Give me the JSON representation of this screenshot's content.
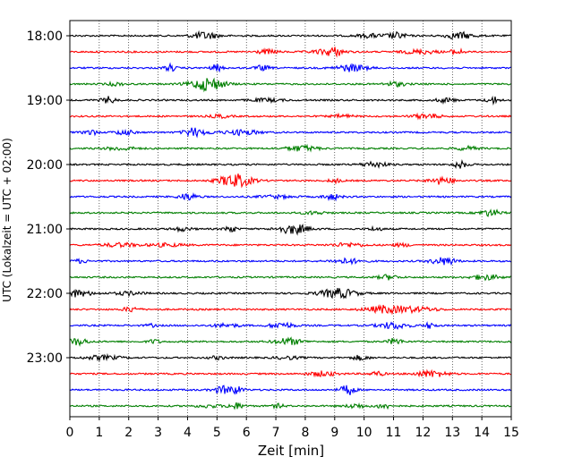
{
  "chart_data": {
    "type": "line",
    "title": "",
    "xlabel": "Zeit  [min]",
    "ylabel": "UTC (Lokalzeit = UTC + 02:00)",
    "xlim": [
      0,
      15
    ],
    "x_ticks": [
      "0",
      "1",
      "2",
      "3",
      "4",
      "5",
      "6",
      "7",
      "8",
      "9",
      "10",
      "11",
      "12",
      "13",
      "14",
      "15"
    ],
    "y_ticks": [
      "18:00",
      "19:00",
      "20:00",
      "21:00",
      "22:00",
      "23:00"
    ],
    "trace_interval_minutes": 15,
    "trace_count": 24,
    "first_trace_time": "18:00",
    "trace_colors": [
      "#000000",
      "#ff0000",
      "#0000ff",
      "#007f00"
    ],
    "vertical_grid": true,
    "grid_style": "dotted"
  }
}
